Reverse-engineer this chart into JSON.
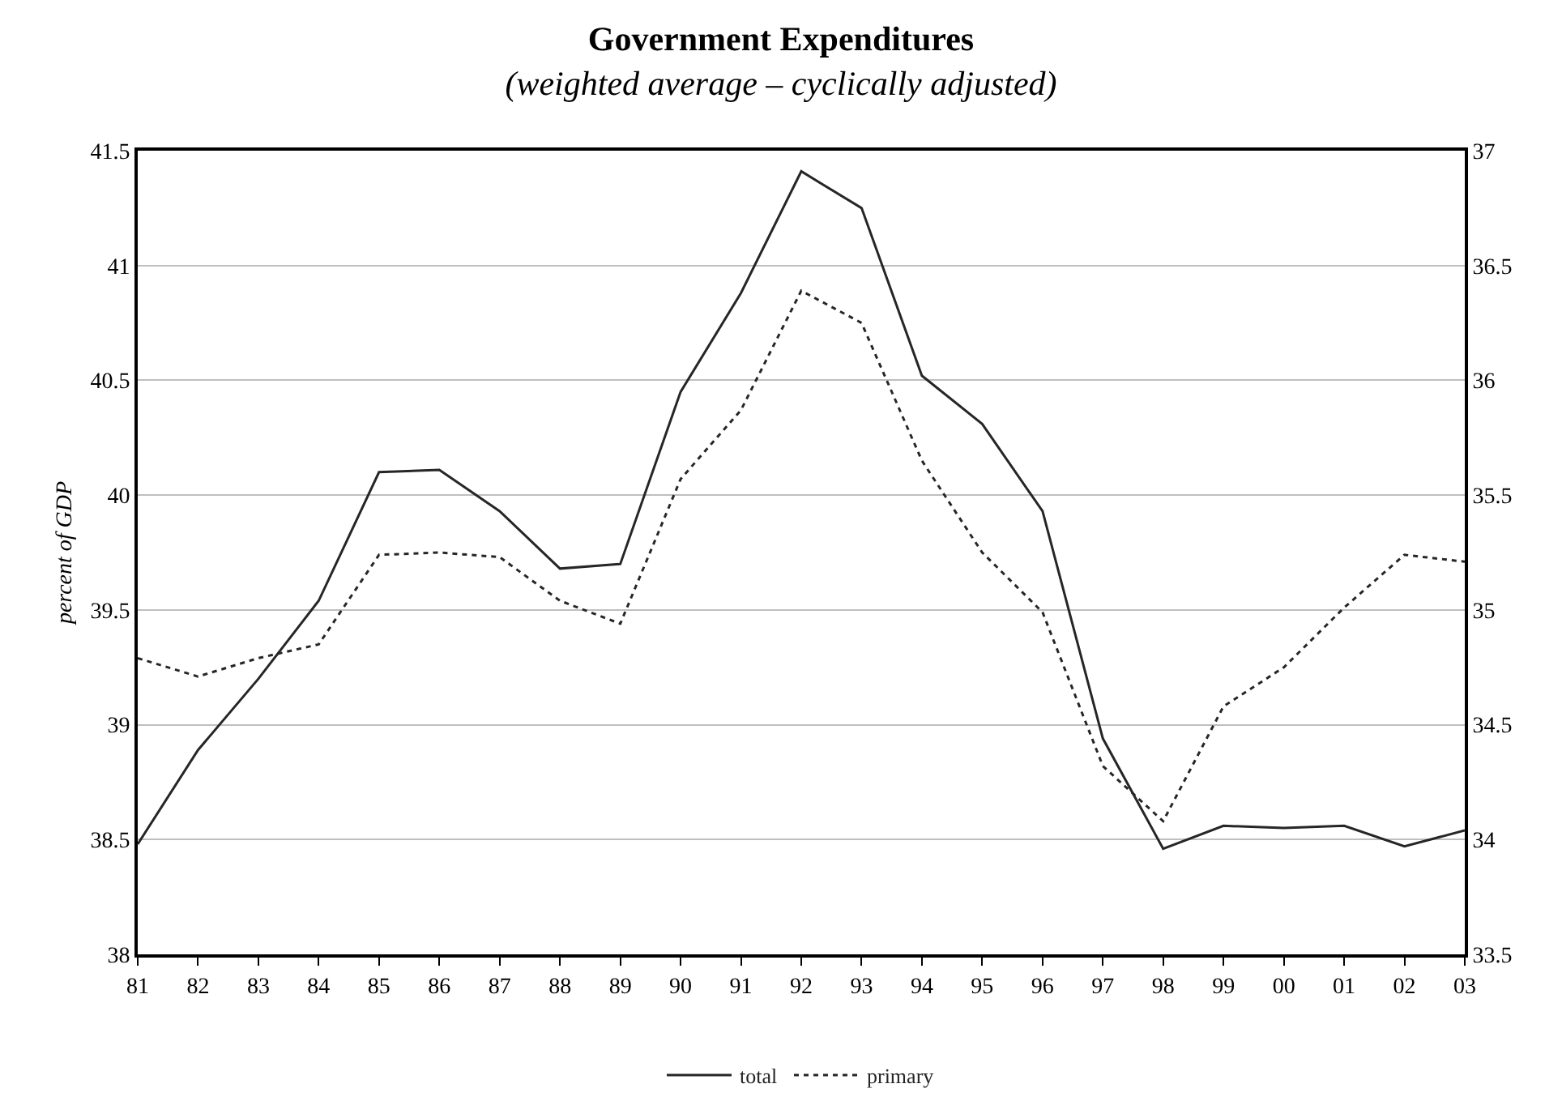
{
  "chart_data": {
    "type": "line",
    "title": "Government Expenditures",
    "subtitle": "(weighted average – cyclically adjusted)",
    "ylabel": "percent of GDP",
    "categories": [
      "81",
      "82",
      "83",
      "84",
      "85",
      "86",
      "87",
      "88",
      "89",
      "90",
      "91",
      "92",
      "93",
      "94",
      "95",
      "96",
      "97",
      "98",
      "99",
      "00",
      "01",
      "02",
      "03"
    ],
    "series": [
      {
        "name": "total",
        "color": "#262626",
        "line_style": "solid",
        "values": [
          38.48,
          38.89,
          39.2,
          39.54,
          40.1,
          40.11,
          39.93,
          39.68,
          39.7,
          40.45,
          40.88,
          41.41,
          41.25,
          40.52,
          40.31,
          39.93,
          38.94,
          38.46,
          38.56,
          38.55,
          38.56,
          38.47,
          38.54
        ]
      },
      {
        "name": "primary",
        "color": "#262626",
        "line_style": "dotted",
        "axis": "y2",
        "values": [
          34.79,
          34.71,
          34.79,
          34.85,
          35.24,
          35.25,
          35.23,
          35.04,
          34.94,
          35.57,
          35.87,
          36.39,
          36.25,
          35.65,
          35.25,
          34.99,
          34.32,
          34.08,
          34.58,
          34.75,
          35.01,
          35.24,
          35.21
        ]
      }
    ],
    "ylim": [
      38,
      41.5
    ],
    "yticks": [
      38,
      38.5,
      39,
      39.5,
      40,
      40.5,
      41,
      41.5
    ],
    "y2lim": [
      33.5,
      37
    ],
    "y2ticks": [
      33.5,
      34,
      34.5,
      35,
      35.5,
      36,
      36.5,
      37
    ],
    "grid": "y",
    "legend": "bottom",
    "marker": "none"
  }
}
